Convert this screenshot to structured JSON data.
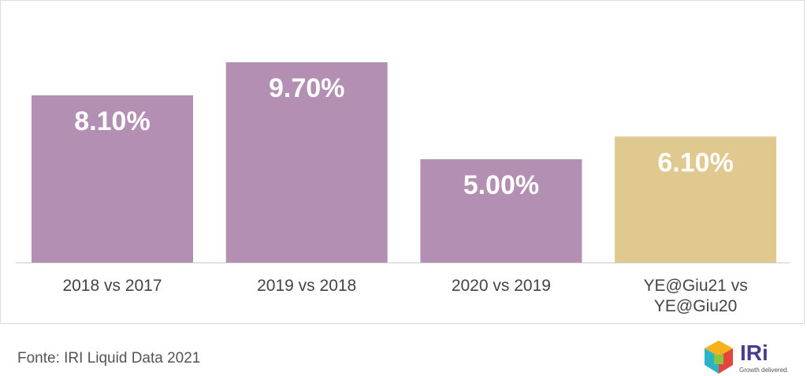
{
  "chart_data": {
    "type": "bar",
    "categories": [
      "2018 vs 2017",
      "2019 vs 2018",
      "2020 vs 2019",
      "YE@Giu21 vs YE@Giu20"
    ],
    "values": [
      8.1,
      9.7,
      5.0,
      6.1
    ],
    "value_labels": [
      "8.10%",
      "9.70%",
      "5.00%",
      "6.10%"
    ],
    "colors": [
      "#b48fb4",
      "#b48fb4",
      "#b48fb4",
      "#dfc98f"
    ]
  },
  "source": "Fonte: IRI Liquid Data 2021",
  "logo": {
    "name": "IRi",
    "tagline": "Growth delivered."
  }
}
